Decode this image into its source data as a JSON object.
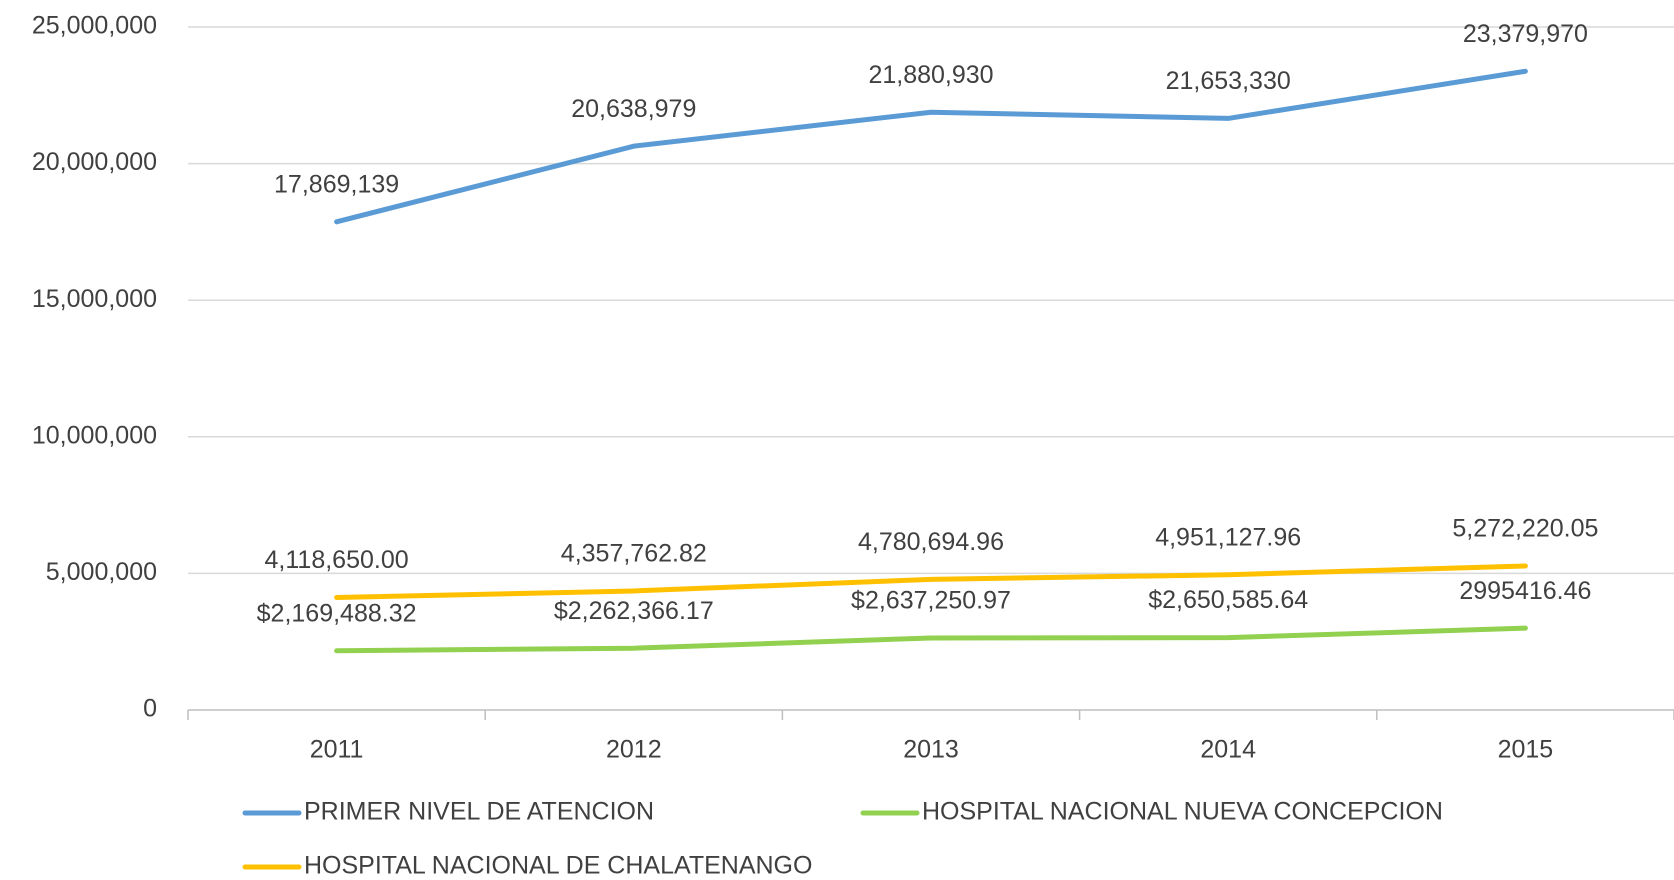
{
  "chart_data": {
    "type": "line",
    "categories": [
      "2011",
      "2012",
      "2013",
      "2014",
      "2015"
    ],
    "series": [
      {
        "name": "PRIMER NIVEL DE ATENCION",
        "color": "#5b9bd5",
        "values": [
          17869139,
          20638979,
          21880930,
          21653330,
          23379970
        ],
        "value_labels": [
          "17,869,139",
          "20,638,979",
          "21,880,930",
          "21,653,330",
          "23,379,970"
        ]
      },
      {
        "name": "HOSPITAL NACIONAL NUEVA CONCEPCION",
        "color": "#92d050",
        "values": [
          2169488.32,
          2262366.17,
          2637250.97,
          2650585.64,
          2995416.46
        ],
        "value_labels": [
          "$2,169,488.32",
          "$2,262,366.17",
          "$2,637,250.97",
          "$2,650,585.64",
          "2995416.46"
        ]
      },
      {
        "name": "HOSPITAL NACIONAL DE CHALATENANGO",
        "color": "#ffc000",
        "values": [
          4118650.0,
          4357762.82,
          4780694.96,
          4951127.96,
          5272220.05
        ],
        "value_labels": [
          "4,118,650.00",
          "4,357,762.82",
          "4,780,694.96",
          "4,951,127.96",
          "5,272,220.05"
        ]
      }
    ],
    "ylim": [
      0,
      25000000
    ],
    "yticks": [
      0,
      {
        "value": 5000000,
        "label": "5,000,000"
      },
      {
        "value": 10000000,
        "label": "10,000,000"
      },
      {
        "value": 15000000,
        "label": "15,000,000"
      },
      {
        "value": 20000000,
        "label": "20,000,000"
      },
      {
        "value": 25000000,
        "label": "25,000,000"
      }
    ],
    "grid": true
  }
}
